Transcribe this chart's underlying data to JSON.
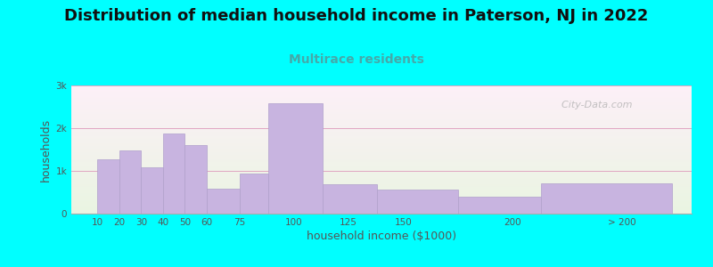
{
  "title": "Distribution of median household income in Paterson, NJ in 2022",
  "subtitle": "Multirace residents",
  "xlabel": "household income ($1000)",
  "ylabel": "households",
  "background_color": "#00FFFF",
  "bar_color": "#c8b4e0",
  "bar_edge_color": "#b0a0cc",
  "values": [
    1280,
    1480,
    1080,
    1880,
    1600,
    590,
    930,
    2580,
    690,
    570,
    390,
    700
  ],
  "lefts": [
    10,
    20,
    30,
    40,
    50,
    60,
    75,
    88,
    113,
    138,
    175,
    213
  ],
  "widths": [
    10,
    10,
    10,
    10,
    10,
    15,
    13,
    25,
    25,
    37,
    38,
    60
  ],
  "ylim": [
    0,
    3000
  ],
  "yticks": [
    0,
    1000,
    2000,
    3000
  ],
  "ytick_labels": [
    "0",
    "1k",
    "2k",
    "3k"
  ],
  "xtick_positions": [
    10,
    20,
    30,
    40,
    50,
    60,
    75,
    100,
    125,
    150,
    200,
    250
  ],
  "xtick_labels": [
    "10",
    "20",
    "30",
    "40",
    "50",
    "60",
    "75",
    "100",
    "125",
    "150",
    "200",
    "> 200"
  ],
  "title_fontsize": 13,
  "subtitle_fontsize": 10,
  "subtitle_color": "#44aaaa",
  "title_color": "#111111",
  "axis_label_color": "#555555",
  "tick_color": "#555555",
  "watermark": "  City-Data.com",
  "grid_color": "#dd99bb",
  "plot_bg_top": "#eaf5e2",
  "plot_bg_bottom": "#fdf0f8"
}
